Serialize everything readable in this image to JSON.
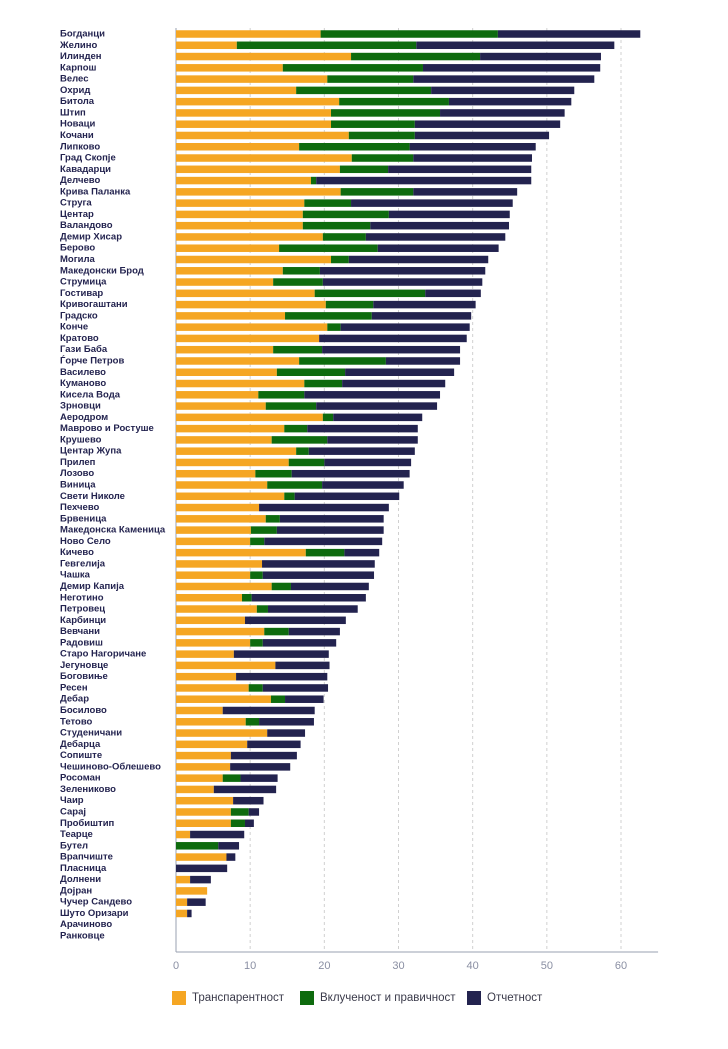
{
  "chart_data": {
    "type": "stacked-bar-horizontal",
    "categories": [
      "Богданци",
      "Желино",
      "Илинден",
      "Карпош",
      "Велес",
      "Охрид",
      "Битола",
      "Штип",
      "Новаци",
      "Кочани",
      "Липково",
      "Град Скопје",
      "Кавадарци",
      "Делчево",
      "Крива Паланка",
      "Струга",
      "Центар",
      "Валандово",
      "Демир Хисар",
      "Берово",
      "Могила",
      "Македонски Брод",
      "Струмица",
      "Гостивар",
      "Кривогаштани",
      "Градско",
      "Конче",
      "Кратово",
      "Гази Баба",
      "Ѓорче Петров",
      "Василево",
      "Куманово",
      "Кисела Вода",
      "Зрновци",
      "Аеродром",
      "Маврово и Ростуше",
      "Крушево",
      "Центар Жупа",
      "Прилеп",
      "Лозово",
      "Виница",
      "Свети Николе",
      "Пехчево",
      "Брвеница",
      "Македонска Каменица",
      "Ново Село",
      "Кичево",
      "Гевгелија",
      "Чашка",
      "Демир Капија",
      "Неготино",
      "Петровец",
      "Карбинци",
      "Вевчани",
      "Радовиш",
      "Старо Нагоричане",
      "Јегуновце",
      "Боговиње",
      "Ресен",
      "Дебар",
      "Босилово",
      "Тетово",
      "Студеничани",
      "Дебарца",
      "Сопиште",
      "Чешиново-Облешево",
      "Росоман",
      "Зелениково",
      "Чаир",
      "Сарај",
      "Пробиштип",
      "Теарце",
      "Бутел",
      "Врапчиште",
      "Пласница",
      "Долнени",
      "Дојран",
      "Чучер Сандево",
      "Шуто Оризари",
      "Арачиново",
      "Ранковце"
    ],
    "series": [
      {
        "name": "Транспарентност",
        "color": "#f5a623",
        "values": [
          19.5,
          8.2,
          23.6,
          14.4,
          20.4,
          16.2,
          22.0,
          20.9,
          20.9,
          23.3,
          16.6,
          23.7,
          22.1,
          18.2,
          22.2,
          17.3,
          17.1,
          17.1,
          19.8,
          13.9,
          20.9,
          14.4,
          13.1,
          18.7,
          20.2,
          14.7,
          20.4,
          19.3,
          13.1,
          16.6,
          13.6,
          17.3,
          11.1,
          12.1,
          19.8,
          14.6,
          12.9,
          16.2,
          15.2,
          10.7,
          12.3,
          14.6,
          11.2,
          12.1,
          10.1,
          10.0,
          17.5,
          11.6,
          10.0,
          12.9,
          8.9,
          10.9,
          9.3,
          11.9,
          10.0,
          7.8,
          13.4,
          8.1,
          9.8,
          12.8,
          6.3,
          9.4,
          12.3,
          9.6,
          7.4,
          7.3,
          6.3,
          5.1,
          7.7,
          7.4,
          7.4,
          1.9,
          0,
          6.8,
          0,
          1.9,
          4.2,
          1.5,
          1.5,
          0,
          0
        ]
      },
      {
        "name": "Вклученост и правичност",
        "color": "#0e6b0e",
        "values": [
          23.9,
          24.2,
          17.4,
          18.9,
          11.6,
          18.2,
          14.8,
          14.7,
          11.3,
          8.9,
          14.9,
          8.3,
          6.5,
          0.7,
          9.8,
          6.3,
          11.6,
          9.1,
          5.8,
          13.3,
          2.4,
          5.0,
          6.7,
          14.9,
          6.4,
          11.7,
          1.8,
          0,
          6.6,
          11.7,
          9.2,
          5.1,
          6.2,
          6.8,
          1.4,
          3.1,
          7.5,
          1.7,
          4.8,
          4.9,
          7.4,
          1.4,
          0,
          1.9,
          3.5,
          1.9,
          5.2,
          0,
          1.7,
          2.6,
          1.3,
          1.5,
          0,
          3.3,
          1.7,
          0,
          0,
          0,
          1.9,
          1.9,
          0,
          1.8,
          0,
          0,
          0,
          0,
          2.4,
          0,
          0,
          2.4,
          1.9,
          0,
          5.7,
          0,
          0,
          0,
          0,
          0,
          0,
          0,
          0
        ]
      },
      {
        "name": "Отчетност",
        "color": "#23234f",
        "values": [
          19.2,
          26.7,
          16.3,
          23.9,
          24.4,
          19.3,
          16.5,
          16.8,
          19.6,
          18.1,
          17.0,
          16.0,
          19.3,
          29.0,
          14.0,
          21.8,
          16.3,
          18.7,
          18.8,
          16.3,
          18.8,
          22.3,
          21.5,
          7.5,
          13.8,
          13.4,
          17.4,
          19.9,
          18.6,
          10.0,
          14.7,
          13.9,
          18.3,
          16.3,
          12.0,
          14.9,
          12.2,
          14.3,
          11.7,
          15.9,
          11.0,
          14.1,
          17.5,
          14.0,
          14.4,
          15.9,
          4.7,
          15.2,
          15.0,
          10.5,
          15.4,
          12.1,
          13.6,
          6.9,
          9.9,
          12.8,
          7.3,
          12.3,
          8.8,
          5.2,
          12.4,
          7.4,
          5.1,
          7.2,
          8.9,
          8.1,
          5.0,
          8.4,
          4.1,
          1.4,
          1.2,
          7.3,
          2.8,
          1.2,
          6.9,
          2.8,
          0,
          2.5,
          0.6,
          0,
          0
        ]
      }
    ],
    "xlim": [
      0,
      65
    ],
    "xticks": [
      0,
      10,
      20,
      30,
      40,
      50,
      60
    ],
    "grid": true
  }
}
